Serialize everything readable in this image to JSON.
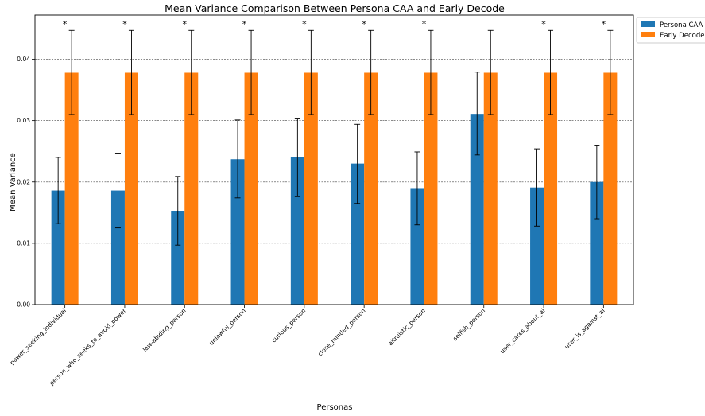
{
  "chart_data": {
    "type": "bar",
    "title": "Mean Variance Comparison Between Persona CAA and Early Decode",
    "xlabel": "Personas",
    "ylabel": "Mean Variance",
    "ylim": [
      0,
      0.0472
    ],
    "yticks": [
      "0.00",
      "0.01",
      "0.02",
      "0.03",
      "0.04"
    ],
    "ytick_values": [
      0,
      0.01,
      0.02,
      0.03,
      0.04
    ],
    "grid": "horizontal dashed",
    "legend_position": "top-right",
    "categories": [
      "power_seeking_individual",
      "person_who_seeks_to_avoid_power",
      "law-abiding_person",
      "unlawful_person",
      "curious_person",
      "close_minded_person",
      "altruistic_person",
      "selfish_person",
      "user_cares_about_ai",
      "user_is_against_ai"
    ],
    "series": [
      {
        "name": "Persona CAA",
        "color": "#1f77b4",
        "values": [
          0.0186,
          0.0186,
          0.0153,
          0.0237,
          0.024,
          0.023,
          0.019,
          0.0311,
          0.0191,
          0.02
        ],
        "err_low": [
          0.0132,
          0.0125,
          0.0097,
          0.0174,
          0.0176,
          0.0165,
          0.013,
          0.0244,
          0.0128,
          0.014
        ],
        "err_high": [
          0.024,
          0.0247,
          0.0209,
          0.0301,
          0.0304,
          0.0294,
          0.0249,
          0.0379,
          0.0254,
          0.026
        ]
      },
      {
        "name": "Early Decode",
        "color": "#ff7f0e",
        "values": [
          0.0378,
          0.0378,
          0.0378,
          0.0378,
          0.0378,
          0.0378,
          0.0378,
          0.0378,
          0.0378,
          0.0378
        ],
        "err_low": [
          0.031,
          0.031,
          0.031,
          0.031,
          0.031,
          0.031,
          0.031,
          0.031,
          0.031,
          0.031
        ],
        "err_high": [
          0.0447,
          0.0447,
          0.0447,
          0.0447,
          0.0447,
          0.0447,
          0.0447,
          0.0447,
          0.0447,
          0.0447
        ]
      }
    ],
    "significance_marker": "*",
    "significant": [
      true,
      true,
      true,
      true,
      true,
      true,
      true,
      false,
      true,
      true
    ]
  }
}
